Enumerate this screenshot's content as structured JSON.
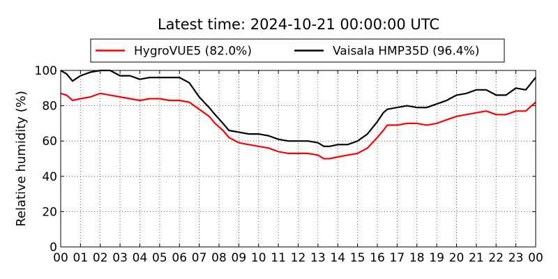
{
  "chart_data": {
    "type": "line",
    "title": "Latest time: 2024-10-21 00:00:00 UTC",
    "xlabel": "",
    "ylabel": "Relative humidity (%)",
    "xlim": [
      0,
      24
    ],
    "ylim": [
      0,
      100
    ],
    "x_tick_labels": [
      "00",
      "01",
      "02",
      "03",
      "04",
      "05",
      "06",
      "07",
      "08",
      "09",
      "10",
      "11",
      "12",
      "13",
      "14",
      "15",
      "16",
      "17",
      "18",
      "19",
      "20",
      "21",
      "22",
      "23",
      "00"
    ],
    "y_ticks": [
      0,
      20,
      40,
      60,
      80,
      100
    ],
    "grid": true,
    "legend_position": "top-center",
    "series": [
      {
        "name": "HygroVUE5 (82.0%)",
        "color": "#ff0000",
        "x": [
          0,
          0.3,
          0.6,
          1.0,
          1.5,
          2.0,
          2.5,
          3.0,
          3.5,
          4.0,
          4.5,
          5.0,
          5.5,
          6.0,
          6.5,
          7.0,
          7.5,
          7.8,
          8.2,
          8.5,
          9.0,
          9.5,
          10.0,
          10.5,
          11.0,
          11.5,
          12.0,
          12.5,
          13.0,
          13.3,
          13.6,
          14.0,
          14.5,
          15.0,
          15.5,
          16.0,
          16.3,
          16.5,
          17.0,
          17.5,
          18.0,
          18.5,
          19.0,
          19.5,
          20.0,
          20.5,
          21.0,
          21.5,
          22.0,
          22.5,
          23.0,
          23.5,
          24.0
        ],
        "y": [
          87,
          86,
          83,
          84,
          85,
          87,
          86,
          85,
          84,
          83,
          84,
          84,
          83,
          83,
          82,
          78,
          74,
          70,
          66,
          62,
          59,
          58,
          57,
          56,
          54,
          53,
          53,
          53,
          52,
          50,
          50,
          51,
          52,
          53,
          56,
          62,
          66,
          69,
          69,
          70,
          70,
          69,
          70,
          72,
          74,
          75,
          76,
          77,
          75,
          75,
          77,
          77,
          82
        ]
      },
      {
        "name": "Vaisala HMP35D (96.4%)",
        "color": "#000000",
        "x": [
          0,
          0.3,
          0.6,
          1.0,
          1.5,
          2.0,
          2.5,
          3.0,
          3.5,
          4.0,
          4.5,
          5.0,
          5.5,
          6.0,
          6.5,
          7.0,
          7.5,
          7.8,
          8.2,
          8.5,
          9.0,
          9.5,
          10.0,
          10.5,
          11.0,
          11.5,
          12.0,
          12.5,
          13.0,
          13.3,
          13.6,
          14.0,
          14.5,
          15.0,
          15.5,
          16.0,
          16.3,
          16.5,
          17.0,
          17.5,
          18.0,
          18.5,
          19.0,
          19.5,
          20.0,
          20.5,
          21.0,
          21.5,
          22.0,
          22.5,
          23.0,
          23.5,
          24.0
        ],
        "y": [
          100,
          98,
          94,
          97,
          99,
          100,
          100,
          97,
          97,
          95,
          96,
          96,
          96,
          96,
          93,
          85,
          79,
          75,
          70,
          66,
          65,
          64,
          64,
          63,
          61,
          60,
          60,
          60,
          59,
          57,
          57,
          58,
          58,
          60,
          64,
          71,
          76,
          78,
          79,
          80,
          79,
          79,
          81,
          83,
          86,
          87,
          89,
          89,
          86,
          86,
          90,
          89,
          96
        ]
      }
    ]
  }
}
